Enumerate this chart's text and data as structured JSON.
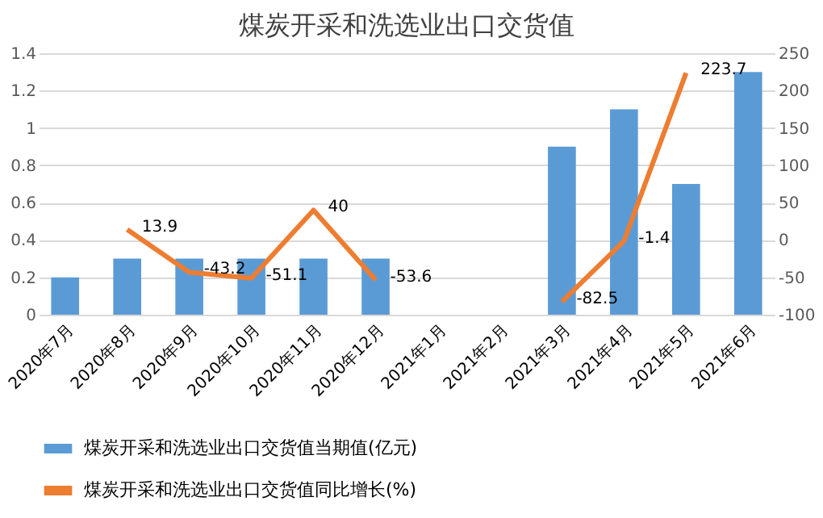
{
  "chart_data": {
    "type": "bar",
    "title": "煤炭开采和洗选业出口交货值",
    "categories": [
      "2020年7月",
      "2020年8月",
      "2020年9月",
      "2020年10月",
      "2020年11月",
      "2020年12月",
      "2021年1月",
      "2021年2月",
      "2021年3月",
      "2021年4月",
      "2021年5月",
      "2021年6月"
    ],
    "series": [
      {
        "name": "煤炭开采和洗选业出口交货值当期值(亿元)",
        "color": "#5b9bd5",
        "values": [
          0.2,
          0.3,
          0.3,
          0.3,
          0.3,
          0.3,
          null,
          null,
          0.9,
          1.1,
          0.7,
          1.3
        ]
      },
      {
        "name": "煤炭开采和洗选业出口交货值同比增长(%)",
        "type": "line",
        "axis": "y2",
        "color": "#ed7d31",
        "data_labels": true,
        "values": [
          null,
          13.9,
          -43.2,
          -51.1,
          40,
          -53.6,
          null,
          null,
          -82.5,
          -1.4,
          223.7,
          null
        ]
      }
    ],
    "ylim": [
      0,
      1.4
    ],
    "yticks": [
      0,
      0.2,
      0.4,
      0.6,
      0.8,
      1,
      1.2,
      1.4
    ],
    "y2lim": [
      -100,
      250
    ],
    "y2ticks": [
      -100,
      -50,
      0,
      50,
      100,
      150,
      200,
      250
    ],
    "grid": "y",
    "legend": "bottom"
  }
}
